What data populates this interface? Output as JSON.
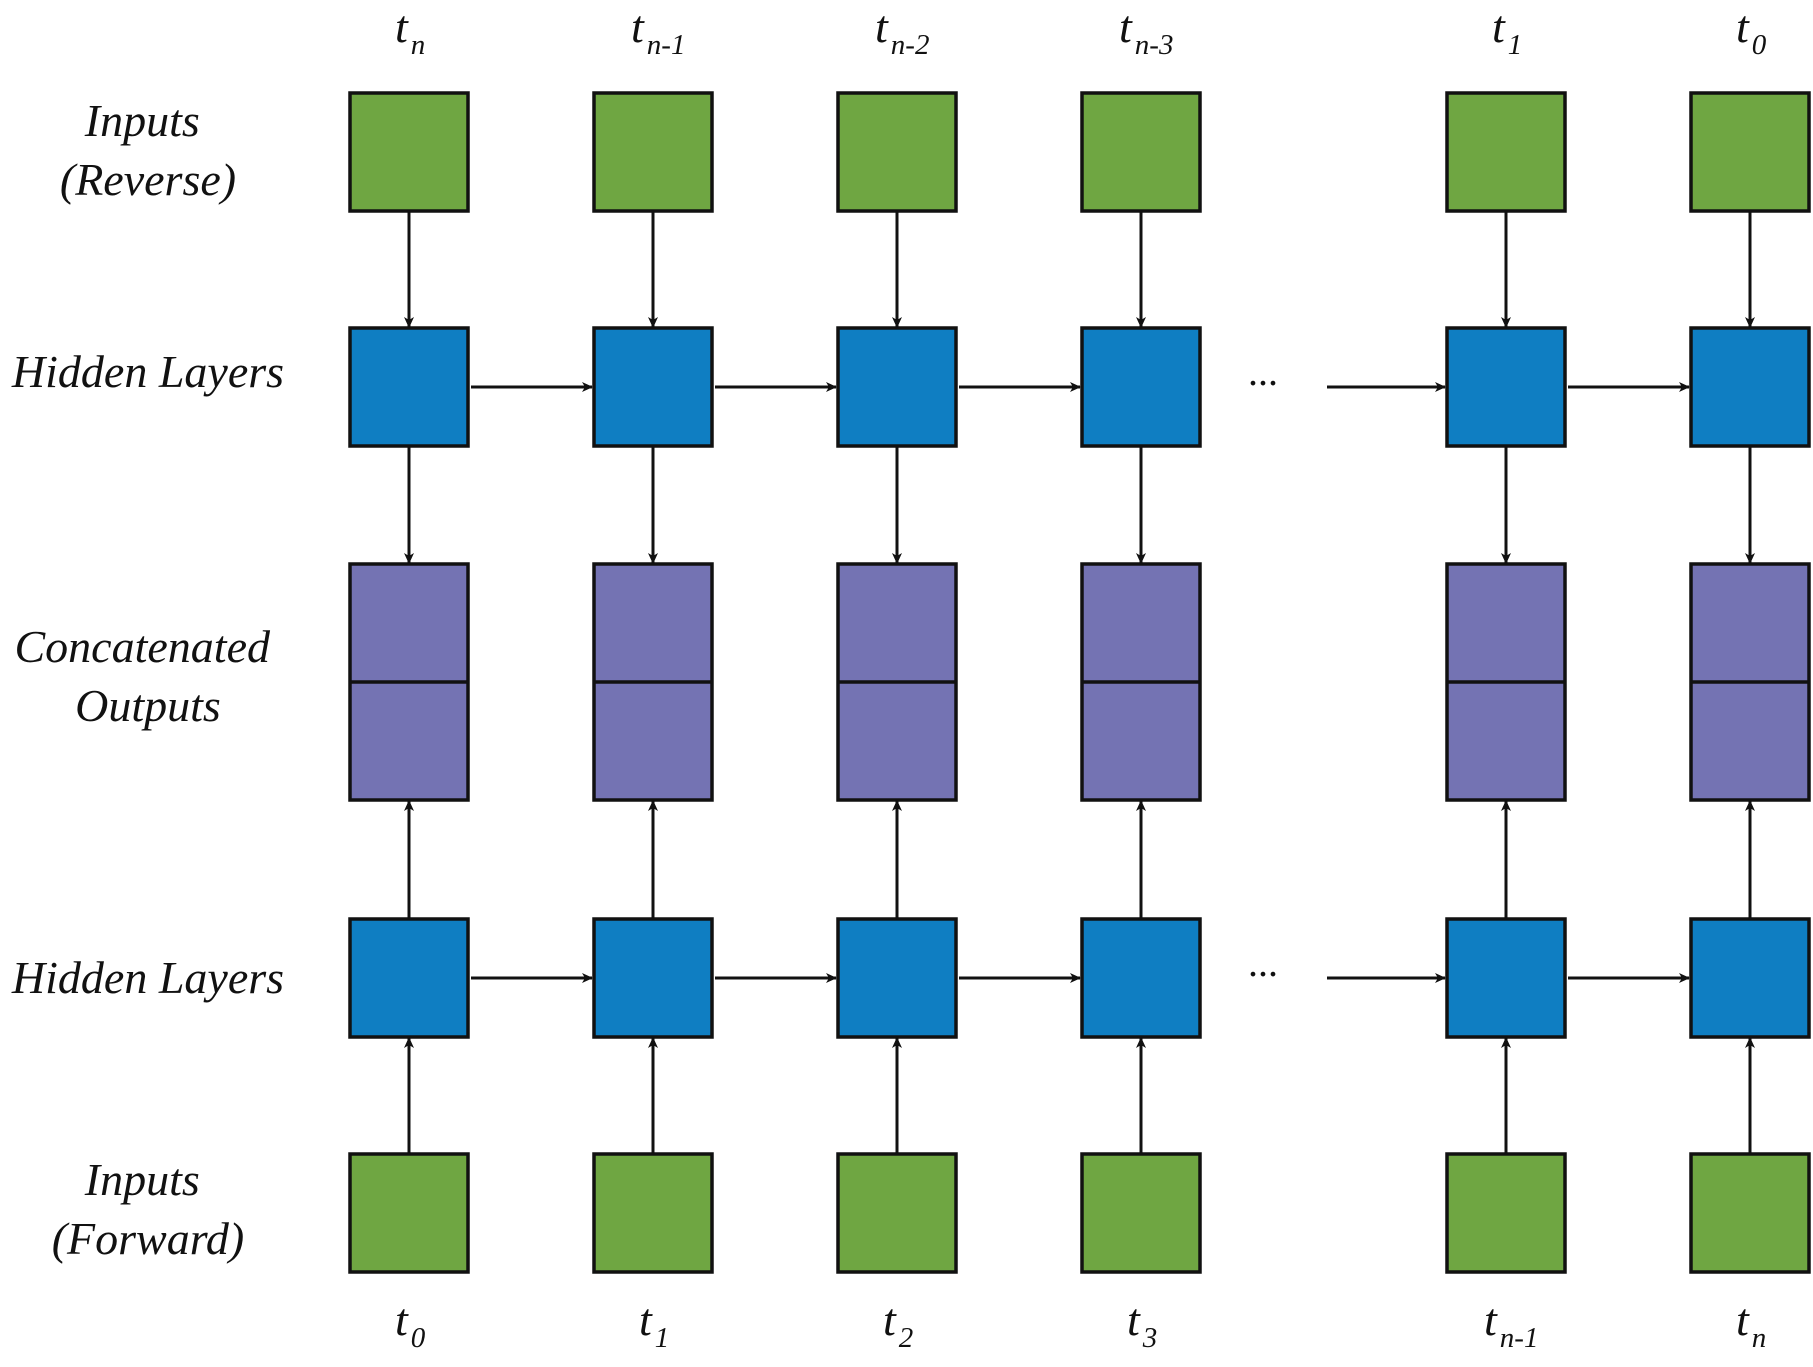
{
  "colors": {
    "input": "#6fa642",
    "hidden": "#0f7ec2",
    "output": "#7473b3",
    "line": "#111111"
  },
  "row_labels": {
    "inputs_reverse": [
      "Inputs",
      "(Reverse)"
    ],
    "hidden_reverse": [
      "Hidden Layers"
    ],
    "concatenated": [
      "Concatenated",
      "Outputs"
    ],
    "hidden_forward": [
      "Hidden Layers"
    ],
    "inputs_forward": [
      "Inputs",
      "(Forward)"
    ]
  },
  "ellipsis": "...",
  "time_steps_top": [
    {
      "main": "t",
      "sub": "n"
    },
    {
      "main": "t",
      "sub": "n-1"
    },
    {
      "main": "t",
      "sub": "n-2"
    },
    {
      "main": "t",
      "sub": "n-3"
    },
    {
      "main": "t",
      "sub": "1"
    },
    {
      "main": "t",
      "sub": "0"
    }
  ],
  "time_steps_bottom": [
    {
      "main": "t",
      "sub": "0"
    },
    {
      "main": "t",
      "sub": "1"
    },
    {
      "main": "t",
      "sub": "2"
    },
    {
      "main": "t",
      "sub": "3"
    },
    {
      "main": "t",
      "sub": "n-1"
    },
    {
      "main": "t",
      "sub": "n"
    }
  ]
}
